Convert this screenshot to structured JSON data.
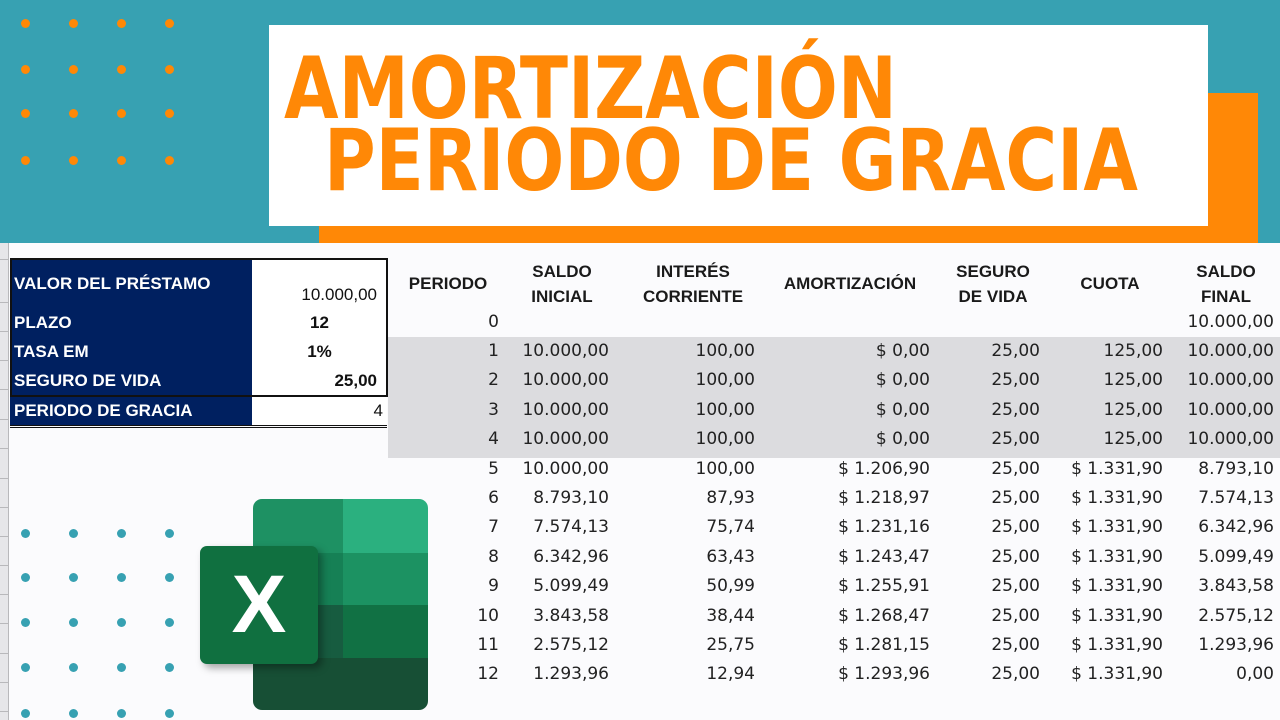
{
  "title": {
    "line1": "AMORTIZACIÓN",
    "line2": "PERIODO DE GRACIA"
  },
  "colors": {
    "teal": "#37a1b2",
    "orange": "#ff8806",
    "navy": "#002060",
    "grace_band": "#dcdcdf"
  },
  "parameters": {
    "rows": [
      {
        "label": "VALOR DEL PRÉSTAMO",
        "value": "10.000,00"
      },
      {
        "label": "PLAZO",
        "value": "12"
      },
      {
        "label": "TASA EM",
        "value": "1%"
      },
      {
        "label": "SEGURO DE VIDA",
        "value": "25,00"
      },
      {
        "label": "PERIODO DE GRACIA",
        "value": "4"
      }
    ]
  },
  "table": {
    "headers": {
      "periodo": "PERIODO",
      "saldo_inicial_1": "SALDO",
      "saldo_inicial_2": "INICIAL",
      "interes_1": "INTERÉS",
      "interes_2": "CORRIENTE",
      "amortizacion": "AMORTIZACIÓN",
      "seguro_1": "SEGURO",
      "seguro_2": "DE VIDA",
      "cuota": "CUOTA",
      "saldo_final_1": "SALDO",
      "saldo_final_2": "FINAL"
    },
    "rows": [
      {
        "periodo": "0",
        "saldo_inicial": "",
        "interes": "",
        "amortizacion": "",
        "seguro": "",
        "cuota": "",
        "saldo_final": "10.000,00"
      },
      {
        "periodo": "1",
        "saldo_inicial": "10.000,00",
        "interes": "100,00",
        "amortizacion": "$ 0,00",
        "seguro": "25,00",
        "cuota": "125,00",
        "saldo_final": "10.000,00"
      },
      {
        "periodo": "2",
        "saldo_inicial": "10.000,00",
        "interes": "100,00",
        "amortizacion": "$ 0,00",
        "seguro": "25,00",
        "cuota": "125,00",
        "saldo_final": "10.000,00"
      },
      {
        "periodo": "3",
        "saldo_inicial": "10.000,00",
        "interes": "100,00",
        "amortizacion": "$ 0,00",
        "seguro": "25,00",
        "cuota": "125,00",
        "saldo_final": "10.000,00"
      },
      {
        "periodo": "4",
        "saldo_inicial": "10.000,00",
        "interes": "100,00",
        "amortizacion": "$ 0,00",
        "seguro": "25,00",
        "cuota": "125,00",
        "saldo_final": "10.000,00"
      },
      {
        "periodo": "5",
        "saldo_inicial": "10.000,00",
        "interes": "100,00",
        "amortizacion": "$ 1.206,90",
        "seguro": "25,00",
        "cuota": "$ 1.331,90",
        "saldo_final": "8.793,10"
      },
      {
        "periodo": "6",
        "saldo_inicial": "8.793,10",
        "interes": "87,93",
        "amortizacion": "$ 1.218,97",
        "seguro": "25,00",
        "cuota": "$ 1.331,90",
        "saldo_final": "7.574,13"
      },
      {
        "periodo": "7",
        "saldo_inicial": "7.574,13",
        "interes": "75,74",
        "amortizacion": "$ 1.231,16",
        "seguro": "25,00",
        "cuota": "$ 1.331,90",
        "saldo_final": "6.342,96"
      },
      {
        "periodo": "8",
        "saldo_inicial": "6.342,96",
        "interes": "63,43",
        "amortizacion": "$ 1.243,47",
        "seguro": "25,00",
        "cuota": "$ 1.331,90",
        "saldo_final": "5.099,49"
      },
      {
        "periodo": "9",
        "saldo_inicial": "5.099,49",
        "interes": "50,99",
        "amortizacion": "$ 1.255,91",
        "seguro": "25,00",
        "cuota": "$ 1.331,90",
        "saldo_final": "3.843,58"
      },
      {
        "periodo": "10",
        "saldo_inicial": "3.843,58",
        "interes": "38,44",
        "amortizacion": "$ 1.268,47",
        "seguro": "25,00",
        "cuota": "$ 1.331,90",
        "saldo_final": "2.575,12"
      },
      {
        "periodo": "11",
        "saldo_inicial": "2.575,12",
        "interes": "25,75",
        "amortizacion": "$ 1.281,15",
        "seguro": "25,00",
        "cuota": "$ 1.331,90",
        "saldo_final": "1.293,96"
      },
      {
        "periodo": "12",
        "saldo_inicial": "1.293,96",
        "interes": "12,94",
        "amortizacion": "$ 1.293,96",
        "seguro": "25,00",
        "cuota": "$ 1.331,90",
        "saldo_final": "0,00"
      }
    ]
  },
  "logo": {
    "icon": "excel-logo-icon",
    "letter": "X"
  }
}
